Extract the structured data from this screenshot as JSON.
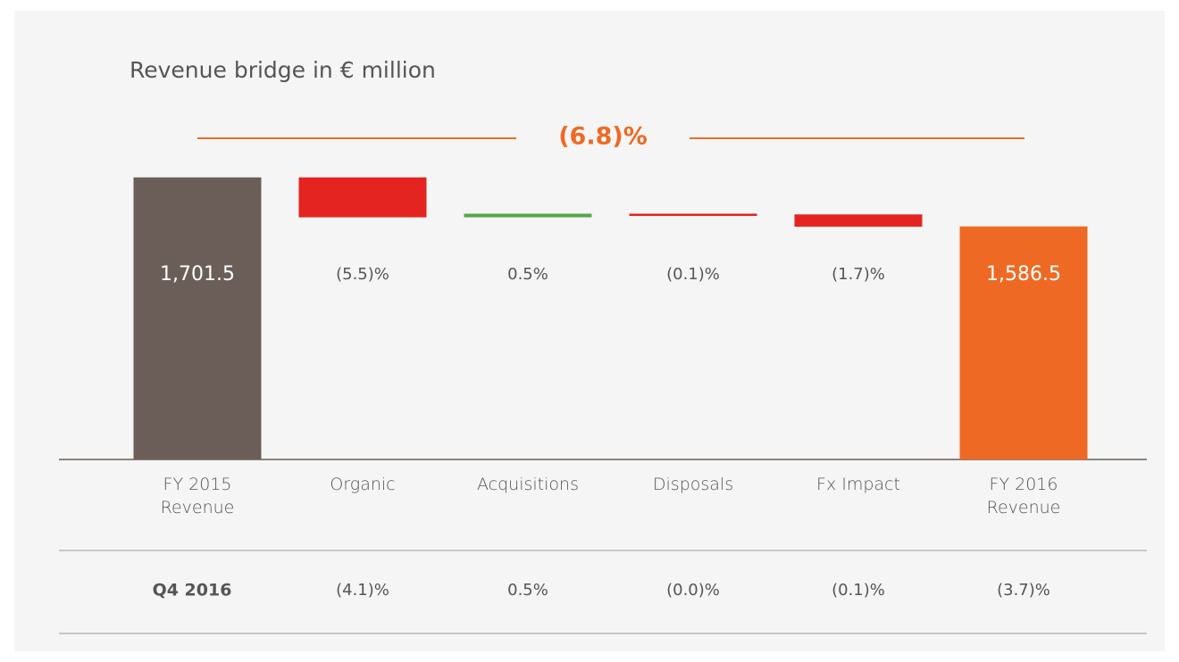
{
  "chart_data": {
    "type": "waterfall",
    "title": "Revenue bridge in € million",
    "annotation": {
      "value": -6.8,
      "label": "(6.8)%"
    },
    "categories": [
      "FY 2015 Revenue",
      "Organic",
      "Acquisitions",
      "Disposals",
      "Fx Impact",
      "FY 2016 Revenue"
    ],
    "measures": [
      "total",
      "relative_percent",
      "relative_percent",
      "relative_percent",
      "relative_percent",
      "total"
    ],
    "values": [
      1701.5,
      -5.5,
      0.5,
      -0.1,
      -1.7,
      1586.5
    ],
    "value_labels": [
      "1,701.5",
      "(5.5)%",
      "0.5%",
      "(0.1)%",
      "(1.7)%",
      "1,586.5"
    ],
    "colors": [
      "#6b5e58",
      "#e32420",
      "#5aa64a",
      "#e32420",
      "#e32420",
      "#ee6a24"
    ],
    "ylim": [
      1040,
      1720
    ],
    "q4_row": {
      "label": "Q4 2016",
      "values": [
        -4.1,
        0.5,
        -0.0,
        -0.1,
        -3.7
      ],
      "value_labels": [
        "(4.1)%",
        "0.5%",
        "(0.0)%",
        "(0.1)%",
        "(3.7)%"
      ]
    }
  }
}
